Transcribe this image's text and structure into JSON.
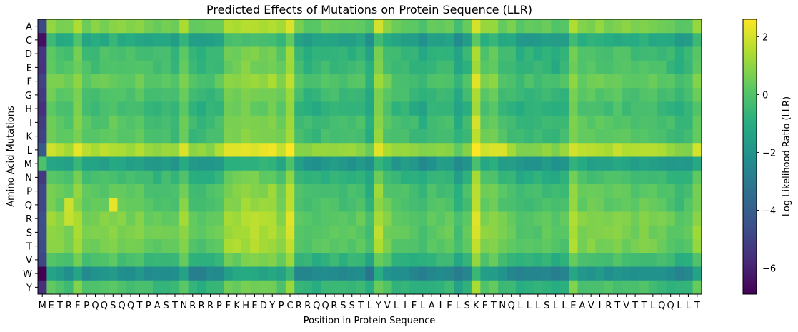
{
  "chart_data": {
    "type": "heatmap",
    "title": "Predicted Effects of Mutations on Protein Sequence (LLR)",
    "xlabel": "Position in Protein Sequence",
    "ylabel": "Amino Acid Mutations",
    "colorbar_label": "Log Likelihood Ratio (LLR)",
    "colormap": "viridis",
    "vmin": -6.9,
    "vmax": 2.6,
    "colorbar_ticks": [
      2,
      0,
      -2,
      -4,
      -6
    ],
    "colorbar_tick_labels": [
      "2",
      "0",
      "−2",
      "−4",
      "−6"
    ],
    "rows": [
      "A",
      "C",
      "D",
      "E",
      "F",
      "G",
      "H",
      "I",
      "K",
      "L",
      "M",
      "N",
      "P",
      "Q",
      "R",
      "S",
      "T",
      "V",
      "W",
      "Y"
    ],
    "sequence": [
      "M",
      "E",
      "T",
      "R",
      "F",
      "P",
      "Q",
      "Q",
      "S",
      "Q",
      "Q",
      "T",
      "P",
      "A",
      "S",
      "T",
      "N",
      "R",
      "R",
      "R",
      "P",
      "F",
      "K",
      "H",
      "E",
      "D",
      "Y",
      "P",
      "C",
      "R",
      "R",
      "Q",
      "Q",
      "R",
      "S",
      "S",
      "T",
      "L",
      "Y",
      "V",
      "L",
      "I",
      "F",
      "L",
      "A",
      "I",
      "F",
      "L",
      "S",
      "K",
      "F",
      "T",
      "N",
      "Q",
      "L",
      "L",
      "L",
      "S",
      "L",
      "L",
      "E",
      "A",
      "V",
      "I",
      "R",
      "T",
      "V",
      "T",
      "T",
      "L",
      "Q",
      "Q",
      "L",
      "L",
      "T"
    ],
    "position_offsets": [
      0,
      0.6,
      0.3,
      0.2,
      1.0,
      0.1,
      0.1,
      0.2,
      0.4,
      0.2,
      0.1,
      0.2,
      0.0,
      -0.1,
      0.0,
      -0.2,
      0.6,
      -0.4,
      -0.4,
      -0.3,
      0.0,
      0.8,
      0.9,
      1.0,
      1.0,
      0.9,
      1.0,
      0.5,
      1.5,
      -0.2,
      -0.4,
      -0.4,
      -0.2,
      -0.2,
      -0.3,
      -0.3,
      -0.2,
      -0.8,
      1.0,
      0.2,
      -0.2,
      -0.2,
      -0.4,
      -0.7,
      -0.3,
      -0.2,
      -0.2,
      -0.9,
      -0.3,
      1.6,
      0.4,
      0.6,
      0.0,
      -0.1,
      -0.5,
      -0.4,
      -0.4,
      -0.3,
      -0.6,
      -0.3,
      1.0,
      0.3,
      0.3,
      0.3,
      0.2,
      0.3,
      0.2,
      0.1,
      0.2,
      0.1,
      0.0,
      -0.2,
      -0.4,
      -0.3,
      0.6
    ],
    "row_offsets": [
      0.6,
      -1.2,
      -0.4,
      -0.3,
      0.2,
      -0.2,
      -0.5,
      -0.1,
      -0.1,
      1.3,
      -1.6,
      -0.5,
      0.0,
      0.1,
      0.5,
      0.5,
      0.4,
      -0.4,
      -2.2,
      -0.4
    ],
    "first_column_values": [
      -4.8,
      -6.5,
      -5.4,
      -5.5,
      -5.0,
      -5.3,
      -5.6,
      -5.2,
      -5.0,
      -4.2,
      -0.1,
      -5.3,
      -4.9,
      -4.9,
      -4.6,
      -4.6,
      -4.7,
      -4.9,
      -6.9,
      -5.6
    ],
    "hotspots": [
      {
        "row": "L",
        "position": 49,
        "value": 2.6
      },
      {
        "row": "Q",
        "position": 8,
        "value": 2.3
      },
      {
        "row": "F",
        "position": 49,
        "value": 2.2
      },
      {
        "row": "I",
        "position": 49,
        "value": 2.0
      },
      {
        "row": "L",
        "position": 38,
        "value": 2.2
      },
      {
        "row": "R",
        "position": 28,
        "value": 2.2
      },
      {
        "row": "A",
        "position": 28,
        "value": 2.1
      },
      {
        "row": "A",
        "position": 38,
        "value": 2.0
      },
      {
        "row": "L",
        "position": 51,
        "value": 2.1
      },
      {
        "row": "L",
        "position": 52,
        "value": 2.1
      },
      {
        "row": "L",
        "position": 60,
        "value": 2.0
      },
      {
        "row": "R",
        "position": 3,
        "value": 1.8
      },
      {
        "row": "Q",
        "position": 3,
        "value": 1.9
      }
    ]
  }
}
